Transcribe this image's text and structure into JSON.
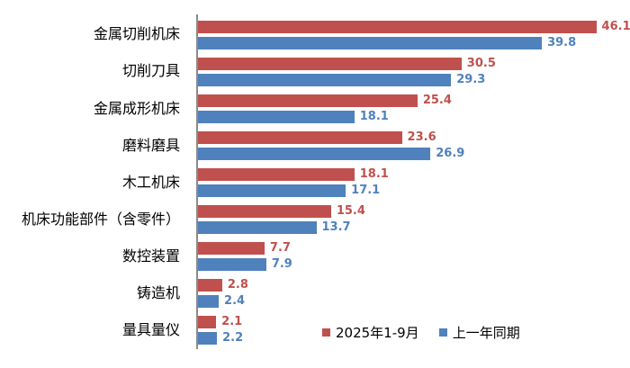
{
  "chart_data": {
    "type": "bar",
    "orientation": "horizontal",
    "title": "",
    "categories": [
      "金属切削机床",
      "切削刀具",
      "金属成形机床",
      "磨料磨具",
      "木工机床",
      "机床功能部件（含零件）",
      "数控装置",
      "铸造机",
      "量具量仪"
    ],
    "series": [
      {
        "name": "2025年1-9月",
        "color": "#c0504d",
        "values": [
          46.1,
          30.5,
          25.4,
          23.6,
          18.1,
          15.4,
          7.7,
          2.8,
          2.1
        ]
      },
      {
        "name": "上一年同期",
        "color": "#4f81bd",
        "values": [
          39.8,
          29.3,
          18.1,
          26.9,
          17.1,
          13.7,
          7.9,
          2.4,
          2.2
        ]
      }
    ],
    "xlim": [
      0,
      50
    ],
    "grid": false,
    "value_labels": true,
    "legend_position": "inside-bottom",
    "axis_color": "#8a8a8a",
    "background_color": "#ffffff",
    "value_label_decimals": 1
  }
}
